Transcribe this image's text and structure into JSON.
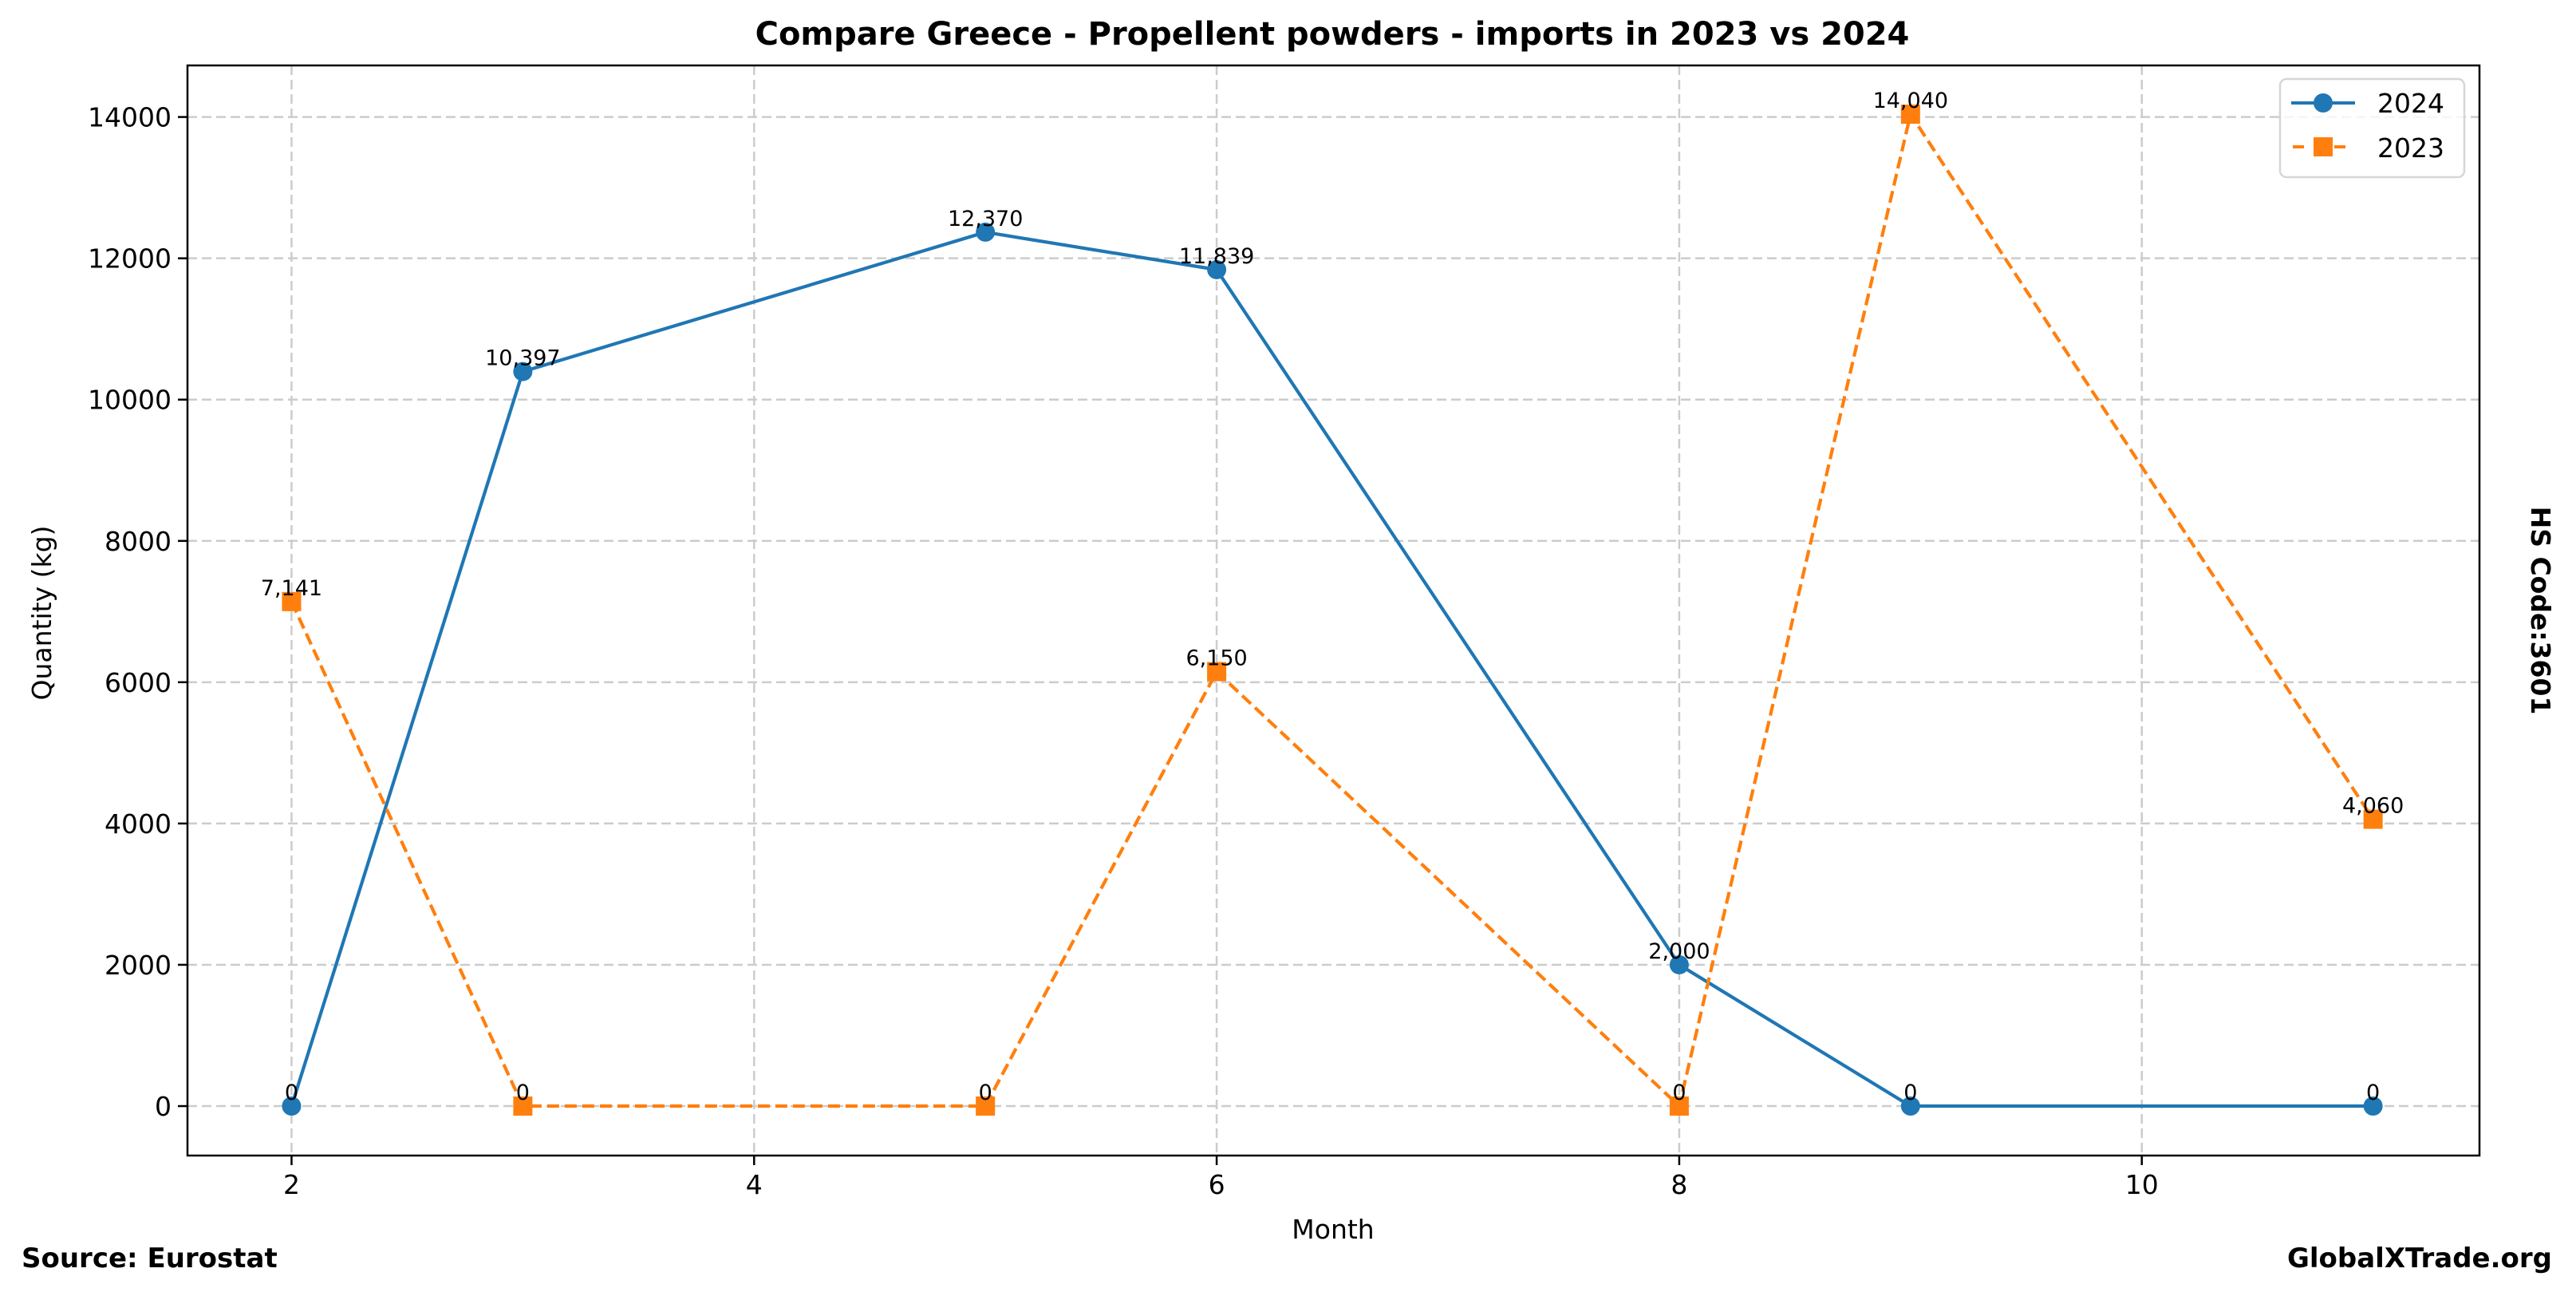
{
  "chart_data": {
    "type": "line",
    "title": "Compare Greece - Propellent powders - imports in 2023 vs 2024",
    "xlabel": "Month",
    "ylabel": "Quantity (kg)",
    "xlim": [
      1.55,
      11.46
    ],
    "ylim": [
      -700,
      14730
    ],
    "xticks": [
      2,
      4,
      6,
      8,
      10
    ],
    "yticks": [
      0,
      2000,
      4000,
      6000,
      8000,
      10000,
      12000,
      14000
    ],
    "grid": true,
    "legend_position": "top-right",
    "series": [
      {
        "name": "2024",
        "color": "#1f77b4",
        "marker": "circle",
        "linestyle": "solid",
        "x": [
          2,
          3,
          5,
          6,
          8,
          9,
          11
        ],
        "values": [
          0,
          10397,
          12370,
          11839,
          2000,
          0,
          0
        ],
        "labels": [
          "0",
          "10,397",
          "12,370",
          "11,839",
          "2,000",
          "0",
          "0"
        ]
      },
      {
        "name": "2023",
        "color": "#ff7f0e",
        "marker": "square",
        "linestyle": "dashed",
        "x": [
          2,
          3,
          5,
          6,
          8,
          9,
          11
        ],
        "values": [
          7141,
          0,
          0,
          6150,
          0,
          14040,
          4060
        ],
        "labels": [
          "7,141",
          "0",
          "0",
          "6,150",
          "0",
          "14,040",
          "4,060"
        ]
      }
    ],
    "side_annotation": "HS Code:3601"
  },
  "footer": {
    "source": "Source: Eurostat",
    "brand": "GlobalXTrade.org"
  }
}
